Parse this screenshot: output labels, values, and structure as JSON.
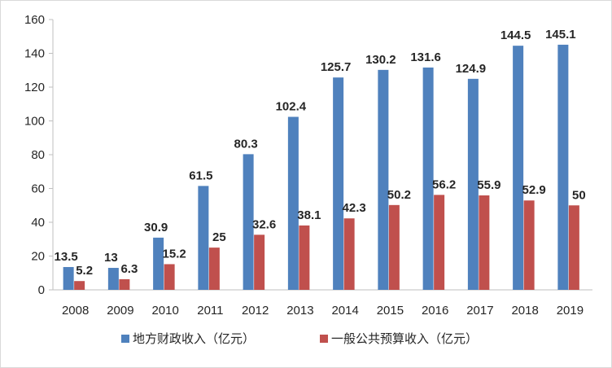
{
  "chart_data": {
    "type": "bar",
    "title": "",
    "xlabel": "",
    "ylabel": "",
    "ylim": [
      0,
      160
    ],
    "yticks": [
      0,
      20,
      40,
      60,
      80,
      100,
      120,
      140,
      160
    ],
    "grid": false,
    "legend_position": "bottom",
    "categories": [
      "2008",
      "2009",
      "2010",
      "2011",
      "2012",
      "2013",
      "2014",
      "2015",
      "2016",
      "2017",
      "2018",
      "2019"
    ],
    "series": [
      {
        "name": "地方财政收入（亿元）",
        "color": "#4f81bd",
        "values": [
          13.5,
          13,
          30.9,
          61.5,
          80.3,
          102.4,
          125.7,
          130.2,
          131.6,
          124.9,
          144.5,
          145.1
        ]
      },
      {
        "name": "一般公共预算收入（亿元）",
        "color": "#c0504d",
        "values": [
          5.2,
          6.3,
          15.2,
          25,
          32.6,
          38.1,
          42.3,
          50.2,
          56.2,
          55.9,
          52.9,
          50
        ]
      }
    ]
  }
}
